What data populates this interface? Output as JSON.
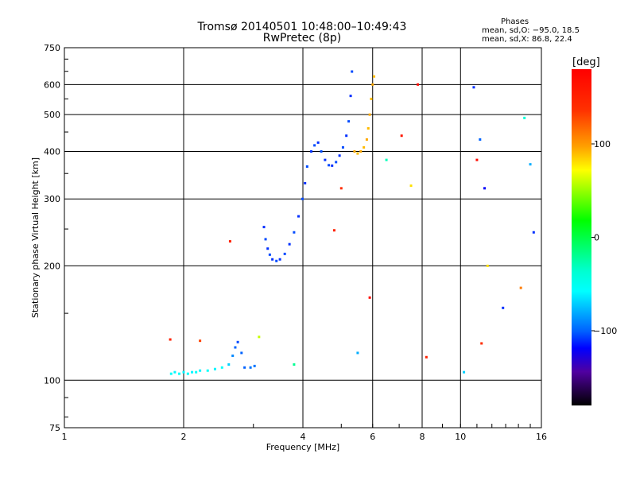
{
  "chart_data": {
    "type": "scatter",
    "title": "Tromsø 20140501 10:48:00–10:49:43",
    "subtitle": "RwPretec (8p)",
    "legend_title": "Phases",
    "legend_lines": [
      "mean, sd,O: −95.0, 18.5",
      "mean, sd,X:  86.8, 22.4"
    ],
    "xlabel": "Frequency [MHz]",
    "ylabel": "Stationary phase Virtual Height [km]",
    "xscale": "log",
    "yscale": "log",
    "xlim": [
      1,
      16
    ],
    "ylim": [
      75,
      750
    ],
    "xticks": [
      1,
      2,
      4,
      6,
      8,
      10,
      16
    ],
    "yticks": [
      75,
      100,
      200,
      300,
      400,
      500,
      600,
      750
    ],
    "grid": true,
    "colorbar": {
      "label": "[deg]",
      "range": [
        -180,
        180
      ],
      "ticks": [
        100,
        0,
        -100
      ]
    },
    "points_fhp": [
      [
        1.86,
        104,
        -55
      ],
      [
        1.9,
        105,
        -60
      ],
      [
        1.95,
        104,
        -55
      ],
      [
        2.0,
        105,
        -60
      ],
      [
        2.05,
        104,
        -55
      ],
      [
        2.1,
        105,
        -60
      ],
      [
        2.15,
        105,
        -55
      ],
      [
        2.2,
        106,
        -60
      ],
      [
        2.3,
        106,
        -55
      ],
      [
        2.4,
        107,
        -60
      ],
      [
        2.5,
        108,
        -55
      ],
      [
        2.6,
        110,
        -70
      ],
      [
        2.66,
        116,
        -90
      ],
      [
        2.7,
        122,
        -100
      ],
      [
        2.74,
        126,
        -105
      ],
      [
        2.8,
        118,
        -100
      ],
      [
        2.85,
        108,
        -100
      ],
      [
        2.95,
        108,
        -95
      ],
      [
        3.02,
        109,
        -95
      ],
      [
        3.19,
        253,
        -110
      ],
      [
        3.22,
        235,
        -105
      ],
      [
        3.26,
        222,
        -110
      ],
      [
        3.3,
        214,
        -105
      ],
      [
        3.35,
        208,
        -110
      ],
      [
        3.43,
        206,
        -105
      ],
      [
        3.5,
        208,
        -110
      ],
      [
        3.6,
        215,
        -105
      ],
      [
        3.7,
        228,
        -110
      ],
      [
        3.8,
        245,
        -105
      ],
      [
        3.9,
        270,
        -110
      ],
      [
        3.99,
        300,
        -105
      ],
      [
        4.05,
        330,
        -110
      ],
      [
        4.1,
        365,
        -105
      ],
      [
        4.2,
        400,
        -110
      ],
      [
        4.28,
        415,
        -105
      ],
      [
        4.37,
        422,
        -110
      ],
      [
        4.45,
        400,
        -105
      ],
      [
        4.55,
        380,
        -110
      ],
      [
        4.65,
        368,
        -105
      ],
      [
        4.74,
        367,
        -110
      ],
      [
        4.85,
        375,
        -105
      ],
      [
        4.95,
        390,
        -110
      ],
      [
        5.05,
        410,
        -105
      ],
      [
        5.15,
        440,
        -110
      ],
      [
        5.22,
        480,
        -105
      ],
      [
        5.28,
        560,
        -110
      ],
      [
        5.32,
        649,
        -105
      ],
      [
        5.4,
        400,
        95
      ],
      [
        5.5,
        395,
        90
      ],
      [
        5.6,
        400,
        95
      ],
      [
        5.7,
        410,
        90
      ],
      [
        5.8,
        430,
        95
      ],
      [
        5.85,
        460,
        90
      ],
      [
        5.9,
        500,
        95
      ],
      [
        5.95,
        550,
        90
      ],
      [
        6.0,
        600,
        95
      ],
      [
        6.05,
        630,
        90
      ],
      [
        1.85,
        128,
        150
      ],
      [
        2.2,
        127,
        130
      ],
      [
        2.62,
        232,
        150
      ],
      [
        3.1,
        130,
        60
      ],
      [
        3.8,
        110,
        -20
      ],
      [
        4.8,
        248,
        150
      ],
      [
        5.0,
        320,
        140
      ],
      [
        5.5,
        118,
        -80
      ],
      [
        5.9,
        165,
        170
      ],
      [
        6.5,
        380,
        -30
      ],
      [
        7.1,
        440,
        160
      ],
      [
        7.5,
        325,
        80
      ],
      [
        7.8,
        600,
        170
      ],
      [
        8.2,
        115,
        150
      ],
      [
        10.8,
        590,
        -110
      ],
      [
        11,
        380,
        170
      ],
      [
        11.2,
        430,
        -100
      ],
      [
        11.5,
        320,
        -120
      ],
      [
        11.7,
        200,
        80
      ],
      [
        12.8,
        155,
        -110
      ],
      [
        14.5,
        490,
        -40
      ],
      [
        15,
        370,
        -80
      ],
      [
        15.3,
        245,
        -110
      ],
      [
        10.2,
        105,
        -70
      ],
      [
        11.3,
        125,
        140
      ],
      [
        14.2,
        175,
        110
      ]
    ]
  }
}
